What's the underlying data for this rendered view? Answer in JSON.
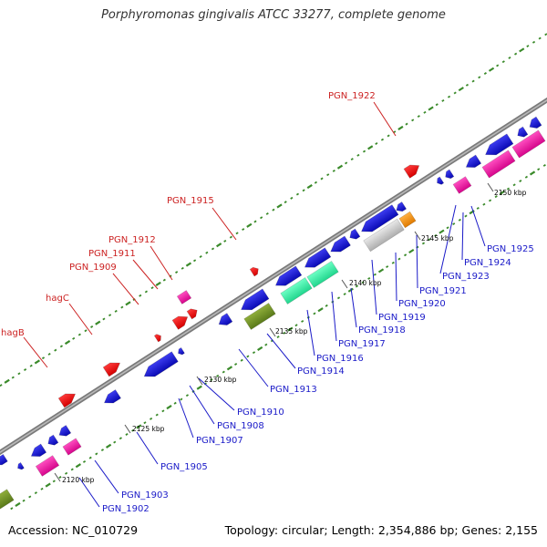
{
  "header": {
    "title": "Porphyromonas gingivalis ATCC 33277, complete genome"
  },
  "footer": {
    "accession": "Accession: NC_010729",
    "topology": "Topology: circular; Length: 2,354,886 bp; Genes: 2,155"
  },
  "colors": {
    "backbone": "#8a8a8a",
    "forward_tick": "#3a8a2a",
    "cds": "#1414d2",
    "rna": "#e9119e",
    "pseudo": "#6b8e23",
    "teal": "#34f0a7",
    "grey": "#c8c8c8",
    "orange": "#f59312",
    "red": "#ee1111",
    "label_red": "#cc2222",
    "label_blue": "#1a1ac8"
  },
  "scale": {
    "ticks": [
      {
        "label": "2120 kbp"
      },
      {
        "label": "2125 kbp"
      },
      {
        "label": "2130 kbp"
      },
      {
        "label": "2135 kbp"
      },
      {
        "label": "2140 kbp"
      },
      {
        "label": "2145 kbp"
      },
      {
        "label": "2150 kbp"
      }
    ]
  },
  "labels_forward": [
    {
      "text": "hagB"
    },
    {
      "text": "hagC"
    },
    {
      "text": "PGN_1909"
    },
    {
      "text": "PGN_1911"
    },
    {
      "text": "PGN_1912"
    },
    {
      "text": "PGN_1915"
    },
    {
      "text": "PGN_1922"
    }
  ],
  "labels_reverse": [
    {
      "text": "PGN_1902"
    },
    {
      "text": "PGN_1903"
    },
    {
      "text": "PGN_1905"
    },
    {
      "text": "PGN_1907"
    },
    {
      "text": "PGN_1908"
    },
    {
      "text": "PGN_1910"
    },
    {
      "text": "PGN_1913"
    },
    {
      "text": "PGN_1914"
    },
    {
      "text": "PGN_1916"
    },
    {
      "text": "PGN_1917"
    },
    {
      "text": "PGN_1918"
    },
    {
      "text": "PGN_1919"
    },
    {
      "text": "PGN_1920"
    },
    {
      "text": "PGN_1921"
    },
    {
      "text": "PGN_1923"
    },
    {
      "text": "PGN_1924"
    },
    {
      "text": "PGN_1925"
    }
  ]
}
